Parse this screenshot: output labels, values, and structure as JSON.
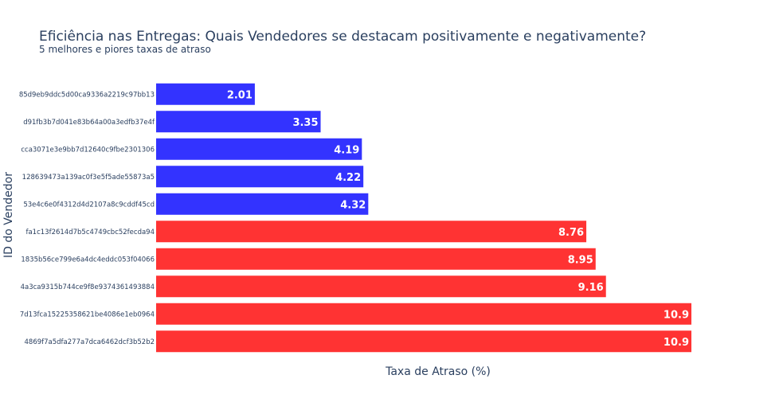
{
  "chart_data": {
    "type": "bar",
    "orientation": "horizontal",
    "title": "Eficiência nas Entregas: Quais Vendedores se destacam positivamente e negativamente?",
    "subtitle": "5 melhores e piores taxas de atraso",
    "xlabel": "Taxa de Atraso (%)",
    "ylabel": "ID do Vendedor",
    "xlim": [
      0,
      10.9
    ],
    "grid": false,
    "categories": [
      "85d9eb9ddc5d00ca9336a2219c97bb13",
      "d91fb3b7d041e83b64a00a3edfb37e4f",
      "cca3071e3e9bb7d12640c9fbe2301306",
      "128639473a139ac0f3e5f5ade55873a5",
      "53e4c6e0f4312d4d2107a8c9cddf45cd",
      "fa1c13f2614d7b5c4749cbc52fecda94",
      "1835b56ce799e6a4dc4eddc053f04066",
      "4a3ca9315b744ce9f8e9374361493884",
      "7d13fca15225358621be4086e1eb0964",
      "4869f7a5dfa277a7dca6462dcf3b52b2"
    ],
    "values": [
      2.01,
      3.35,
      4.19,
      4.22,
      4.32,
      8.76,
      8.95,
      9.16,
      10.9,
      10.9
    ],
    "value_labels": [
      "2.01",
      "3.35",
      "4.19",
      "4.22",
      "4.32",
      "8.76",
      "8.95",
      "9.16",
      "10.9",
      "10.9"
    ],
    "groups": [
      "melhores",
      "melhores",
      "melhores",
      "melhores",
      "melhores",
      "piores",
      "piores",
      "piores",
      "piores",
      "piores"
    ],
    "colors": {
      "melhores": "#3333ff",
      "piores": "#ff3333"
    }
  }
}
